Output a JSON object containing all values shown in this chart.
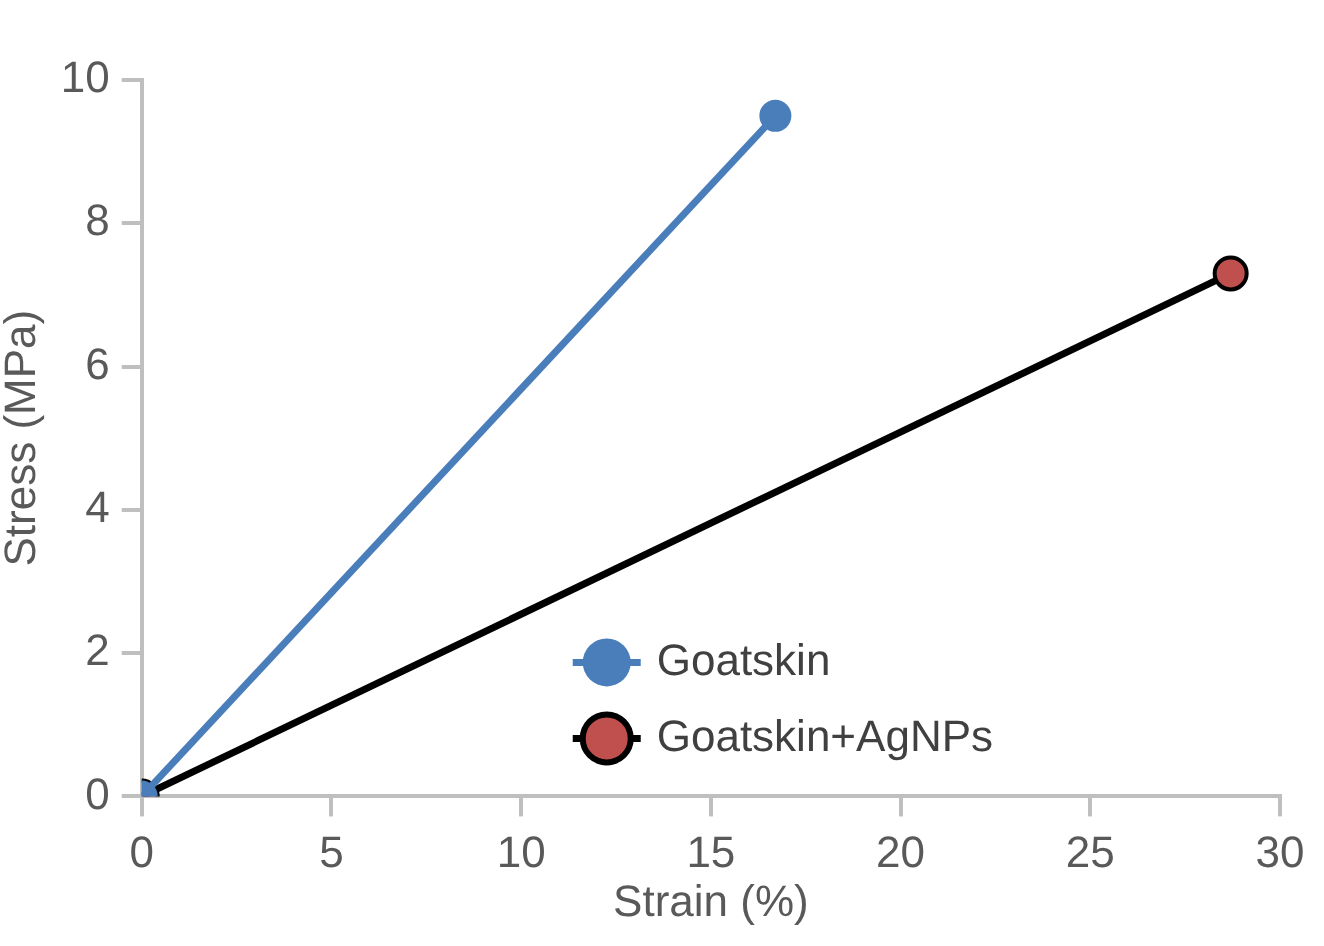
{
  "chart_data": {
    "type": "line",
    "xlabel": "Strain (%)",
    "ylabel": "Stress (MPa)",
    "xlim": [
      0,
      30
    ],
    "xticks": [
      0,
      5,
      10,
      15,
      20,
      25,
      30
    ],
    "ylim": [
      0,
      10
    ],
    "yticks": [
      0,
      2,
      4,
      6,
      8,
      10
    ],
    "grid": false,
    "legend": "bottom",
    "marker": "circle",
    "line_style": "solid",
    "series": [
      {
        "name": "Goatskin",
        "color": "#4a7ebb",
        "x": [
          0,
          16.7
        ],
        "values": [
          0,
          9.5
        ]
      },
      {
        "name": "Goatskin+AgNPs",
        "color": "#000000",
        "x": [
          0,
          28.7
        ],
        "values": [
          0,
          7.3
        ]
      }
    ]
  }
}
